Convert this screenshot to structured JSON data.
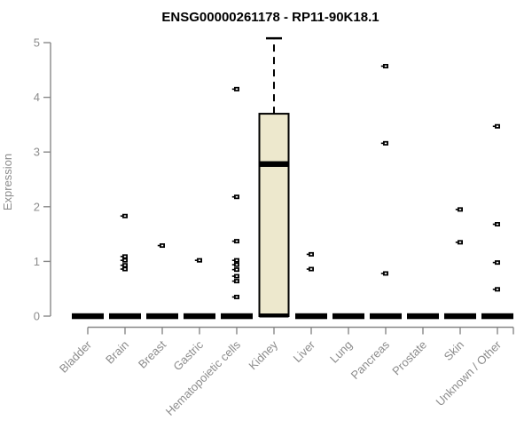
{
  "title": "ENSG00000261178 - RP11-90K18.1",
  "chart_data": {
    "type": "boxplot",
    "title": "ENSG00000261178 - RP11-90K18.1",
    "xlabel": "",
    "ylabel": "Expression",
    "ylim": [
      0,
      5.2
    ],
    "yticks": [
      0,
      1,
      2,
      3,
      4,
      5
    ],
    "grid": false,
    "legend": false,
    "categories": [
      "Bladder",
      "Brain",
      "Breast",
      "Gastric",
      "Hematopoietic cells",
      "Kidney",
      "Liver",
      "Lung",
      "Pancreas",
      "Prostate",
      "Skin",
      "Unknown / Other"
    ],
    "boxes": [
      {
        "category": "Bladder",
        "median": 0,
        "q1": 0,
        "q3": 0,
        "whisker_low": 0,
        "whisker_high": 0,
        "outliers": []
      },
      {
        "category": "Brain",
        "median": 0,
        "q1": 0,
        "q3": 0,
        "whisker_low": 0,
        "whisker_high": 0,
        "outliers": [
          1.83,
          1.09,
          1.02,
          0.93,
          0.86
        ]
      },
      {
        "category": "Breast",
        "median": 0,
        "q1": 0,
        "q3": 0,
        "whisker_low": 0,
        "whisker_high": 0,
        "outliers": [
          1.29
        ]
      },
      {
        "category": "Gastric",
        "median": 0,
        "q1": 0,
        "q3": 0,
        "whisker_low": 0,
        "whisker_high": 0,
        "outliers": [
          1.02
        ]
      },
      {
        "category": "Hematopoietic cells",
        "median": 0,
        "q1": 0,
        "q3": 0,
        "whisker_low": 0,
        "whisker_high": 0,
        "outliers": [
          4.15,
          2.18,
          1.37,
          1.02,
          0.94,
          0.85,
          0.73,
          0.64,
          0.35
        ]
      },
      {
        "category": "Kidney",
        "median": 2.78,
        "q1": 0,
        "q3": 3.7,
        "whisker_low": 0,
        "whisker_high": 5.08,
        "outliers": []
      },
      {
        "category": "Liver",
        "median": 0,
        "q1": 0,
        "q3": 0,
        "whisker_low": 0,
        "whisker_high": 0,
        "outliers": [
          1.13,
          0.86
        ]
      },
      {
        "category": "Lung",
        "median": 0,
        "q1": 0,
        "q3": 0,
        "whisker_low": 0,
        "whisker_high": 0,
        "outliers": []
      },
      {
        "category": "Pancreas",
        "median": 0,
        "q1": 0,
        "q3": 0,
        "whisker_low": 0,
        "whisker_high": 0,
        "outliers": [
          4.57,
          3.16,
          0.78
        ]
      },
      {
        "category": "Prostate",
        "median": 0,
        "q1": 0,
        "q3": 0,
        "whisker_low": 0,
        "whisker_high": 0,
        "outliers": []
      },
      {
        "category": "Skin",
        "median": 0,
        "q1": 0,
        "q3": 0,
        "whisker_low": 0,
        "whisker_high": 0,
        "outliers": [
          1.95,
          1.35
        ]
      },
      {
        "category": "Unknown / Other",
        "median": 0,
        "q1": 0,
        "q3": 0,
        "whisker_low": 0,
        "whisker_high": 0,
        "outliers": [
          3.47,
          1.68,
          0.98,
          0.49
        ]
      }
    ],
    "colors": {
      "box_fill": "#EDE8CD",
      "box_stroke": "#000000",
      "median": "#000000",
      "marker": "#000000",
      "axis_line": "#888888",
      "tick_label": "#8c8c8c",
      "title": "#000000"
    }
  }
}
